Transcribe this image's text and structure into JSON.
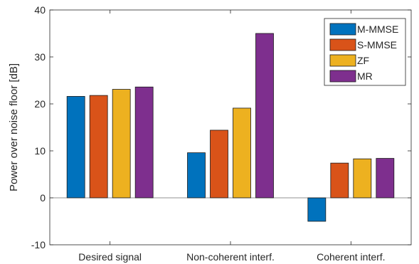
{
  "chart_data": {
    "type": "bar",
    "title": "",
    "xlabel": "",
    "ylabel": "Power over noise floor [dB]",
    "ylim": [
      -10,
      40
    ],
    "yticks": [
      -10,
      0,
      10,
      20,
      30,
      40
    ],
    "ytick_labels": [
      "-10",
      "0",
      "10",
      "20",
      "30",
      "40"
    ],
    "categories": [
      "Desired signal",
      "Non-coherent interf.",
      "Coherent interf."
    ],
    "series": [
      {
        "name": "M-MMSE",
        "color": "#0072BD",
        "values": [
          21.6,
          9.6,
          -5.0
        ]
      },
      {
        "name": "S-MMSE",
        "color": "#D95319",
        "values": [
          21.8,
          14.4,
          7.4
        ]
      },
      {
        "name": "ZF",
        "color": "#EDB120",
        "values": [
          23.1,
          19.1,
          8.3
        ]
      },
      {
        "name": "MR",
        "color": "#7E2F8E",
        "values": [
          23.6,
          35.0,
          8.4
        ]
      }
    ],
    "grid": false,
    "legend_position": "top-right"
  }
}
